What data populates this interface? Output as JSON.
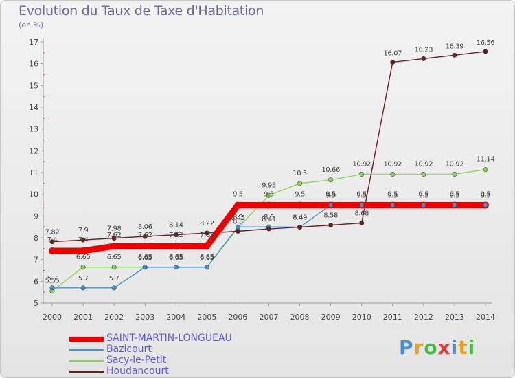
{
  "title": "Evolution du Taux de Taxe d'Habitation",
  "subtitle": "(en %)",
  "brand": {
    "letters": [
      "P",
      "r",
      "o",
      "x",
      "i",
      "t",
      "i"
    ],
    "colors": [
      "#4a90d9",
      "#e8a020",
      "#4ab84a",
      "#d93a3a",
      "#4a90d9",
      "#e8a020",
      "#4ab84a"
    ]
  },
  "chart_data": {
    "type": "line",
    "title": "Evolution du Taux de Taxe d'Habitation",
    "ylabel": "(en %)",
    "xlabel": "",
    "x": [
      "2000",
      "2001",
      "2002",
      "2003",
      "2004",
      "2005",
      "2006",
      "2007",
      "2008",
      "2009",
      "2010",
      "2011",
      "2012",
      "2013",
      "2014"
    ],
    "ylim": [
      5,
      17
    ],
    "yticks": [
      "5",
      "6",
      "7",
      "8",
      "9",
      "10",
      "11",
      "12",
      "13",
      "14",
      "15",
      "16",
      "17"
    ],
    "grid": false,
    "legend_position": "bottom-left",
    "series": [
      {
        "name": "SAINT-MARTIN-LONGUEAU",
        "color": "#ee0000",
        "values": [
          7.4,
          7.4,
          7.62,
          7.62,
          7.62,
          7.62,
          9.5,
          9.5,
          9.5,
          9.5,
          9.5,
          9.5,
          9.5,
          9.5,
          9.5
        ],
        "labels": [
          "7.4",
          "7.4",
          "7.62",
          "7.62",
          "7.62",
          "7.62",
          "9.5",
          "9.5",
          "9.5",
          "9.5",
          "9.5",
          "9.5",
          "9.5",
          "9.5",
          "9.5"
        ]
      },
      {
        "name": "Bazicourt",
        "color": "#4a8fd0",
        "values": [
          5.7,
          5.7,
          5.7,
          6.65,
          6.65,
          6.65,
          8.5,
          8.5,
          8.49,
          9.5,
          9.5,
          9.5,
          9.5,
          9.5,
          9.5
        ],
        "labels": [
          "5.7",
          "5.7",
          "5.7",
          "6.65",
          "6.65",
          "6.65",
          "8.5",
          "8.5",
          "8.49",
          "9.5",
          "9.5",
          "9.5",
          "9.5",
          "9.5",
          "9.5"
        ]
      },
      {
        "name": "Sacy-le-Petit",
        "color": "#8ad65a",
        "values": [
          5.55,
          6.65,
          6.65,
          6.65,
          6.65,
          6.65,
          8.45,
          9.95,
          10.5,
          10.66,
          10.92,
          10.92,
          10.92,
          10.92,
          11.14
        ],
        "labels": [
          "5.55",
          "6.65",
          "6.65",
          "6.65",
          "6.65",
          "6.65",
          "8.45",
          "9.95",
          "10.5",
          "10.66",
          "10.92",
          "10.92",
          "10.92",
          "10.92",
          "11.14"
        ]
      },
      {
        "name": "Houdancourt",
        "color": "#6b1e1e",
        "values": [
          7.82,
          7.9,
          7.98,
          8.06,
          8.14,
          8.22,
          8.3,
          8.41,
          8.49,
          8.58,
          8.68,
          16.07,
          16.23,
          16.39,
          16.56
        ],
        "labels": [
          "7.82",
          "7.9",
          "7.98",
          "8.06",
          "8.14",
          "8.22",
          "8.3",
          "8.41",
          "8.49",
          "8.58",
          "8.68",
          "16.07",
          "16.23",
          "16.39",
          "16.56"
        ]
      }
    ]
  }
}
